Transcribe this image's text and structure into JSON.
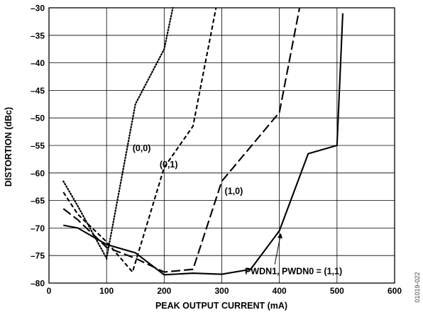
{
  "figure_id": "01019-022",
  "chart_data": {
    "type": "line",
    "xlabel": "PEAK OUTPUT CURRENT (mA)",
    "ylabel": "DISTORTION (dBc)",
    "xlim": [
      0,
      600
    ],
    "ylim": [
      -80,
      -30
    ],
    "xticks": [
      0,
      100,
      200,
      300,
      400,
      500,
      600
    ],
    "yticks": [
      -30,
      -35,
      -40,
      -45,
      -50,
      -55,
      -60,
      -65,
      -70,
      -75,
      -80
    ],
    "xtick_labels": [
      "0",
      "100",
      "200",
      "300",
      "400",
      "500",
      "600"
    ],
    "ytick_labels": [
      "–30",
      "–35",
      "–40",
      "–45",
      "–50",
      "–55",
      "–60",
      "–65",
      "–70",
      "–75",
      "–80"
    ],
    "grid": true,
    "series": [
      {
        "name": "(0,0)",
        "style": "dotted",
        "x": [
          25,
          50,
          100,
          150,
          200,
          215
        ],
        "y": [
          -61.5,
          -66,
          -75.5,
          -47.5,
          -37.5,
          -30
        ]
      },
      {
        "name": "(0,1)",
        "style": "short-dash",
        "x": [
          25,
          50,
          100,
          145,
          200,
          250,
          290
        ],
        "y": [
          -63.5,
          -67.5,
          -72.5,
          -78,
          -59,
          -51.5,
          -30
        ]
      },
      {
        "name": "(1,0)",
        "style": "long-dash",
        "x": [
          25,
          50,
          100,
          150,
          200,
          250,
          300,
          400,
          435
        ],
        "y": [
          -66.5,
          -68.5,
          -73.5,
          -75.5,
          -78,
          -77.5,
          -61.5,
          -49,
          -30
        ]
      },
      {
        "name": "PWDN1, PWDN0 = (1,1)",
        "style": "solid",
        "x": [
          25,
          50,
          100,
          150,
          200,
          250,
          300,
          350,
          400,
          450,
          500,
          510
        ],
        "y": [
          -69.5,
          -70,
          -73,
          -74.5,
          -78.5,
          -78.2,
          -78.4,
          -77.5,
          -70.5,
          -56.5,
          -55,
          -31
        ]
      }
    ],
    "annotations": [
      {
        "text": "(0,0)",
        "x": 145,
        "y": -56
      },
      {
        "text": "(0,1)",
        "x": 192,
        "y": -59
      },
      {
        "text": "(1,0)",
        "x": 305,
        "y": -63.8
      },
      {
        "text": "PWDN1, PWDN0 = (1,1)",
        "x": 340,
        "y": -78.4,
        "arrow_to": [
          400,
          -70.5
        ]
      }
    ]
  },
  "colors": {
    "line": "#000000",
    "grid": "#000000",
    "background": "#ffffff"
  }
}
